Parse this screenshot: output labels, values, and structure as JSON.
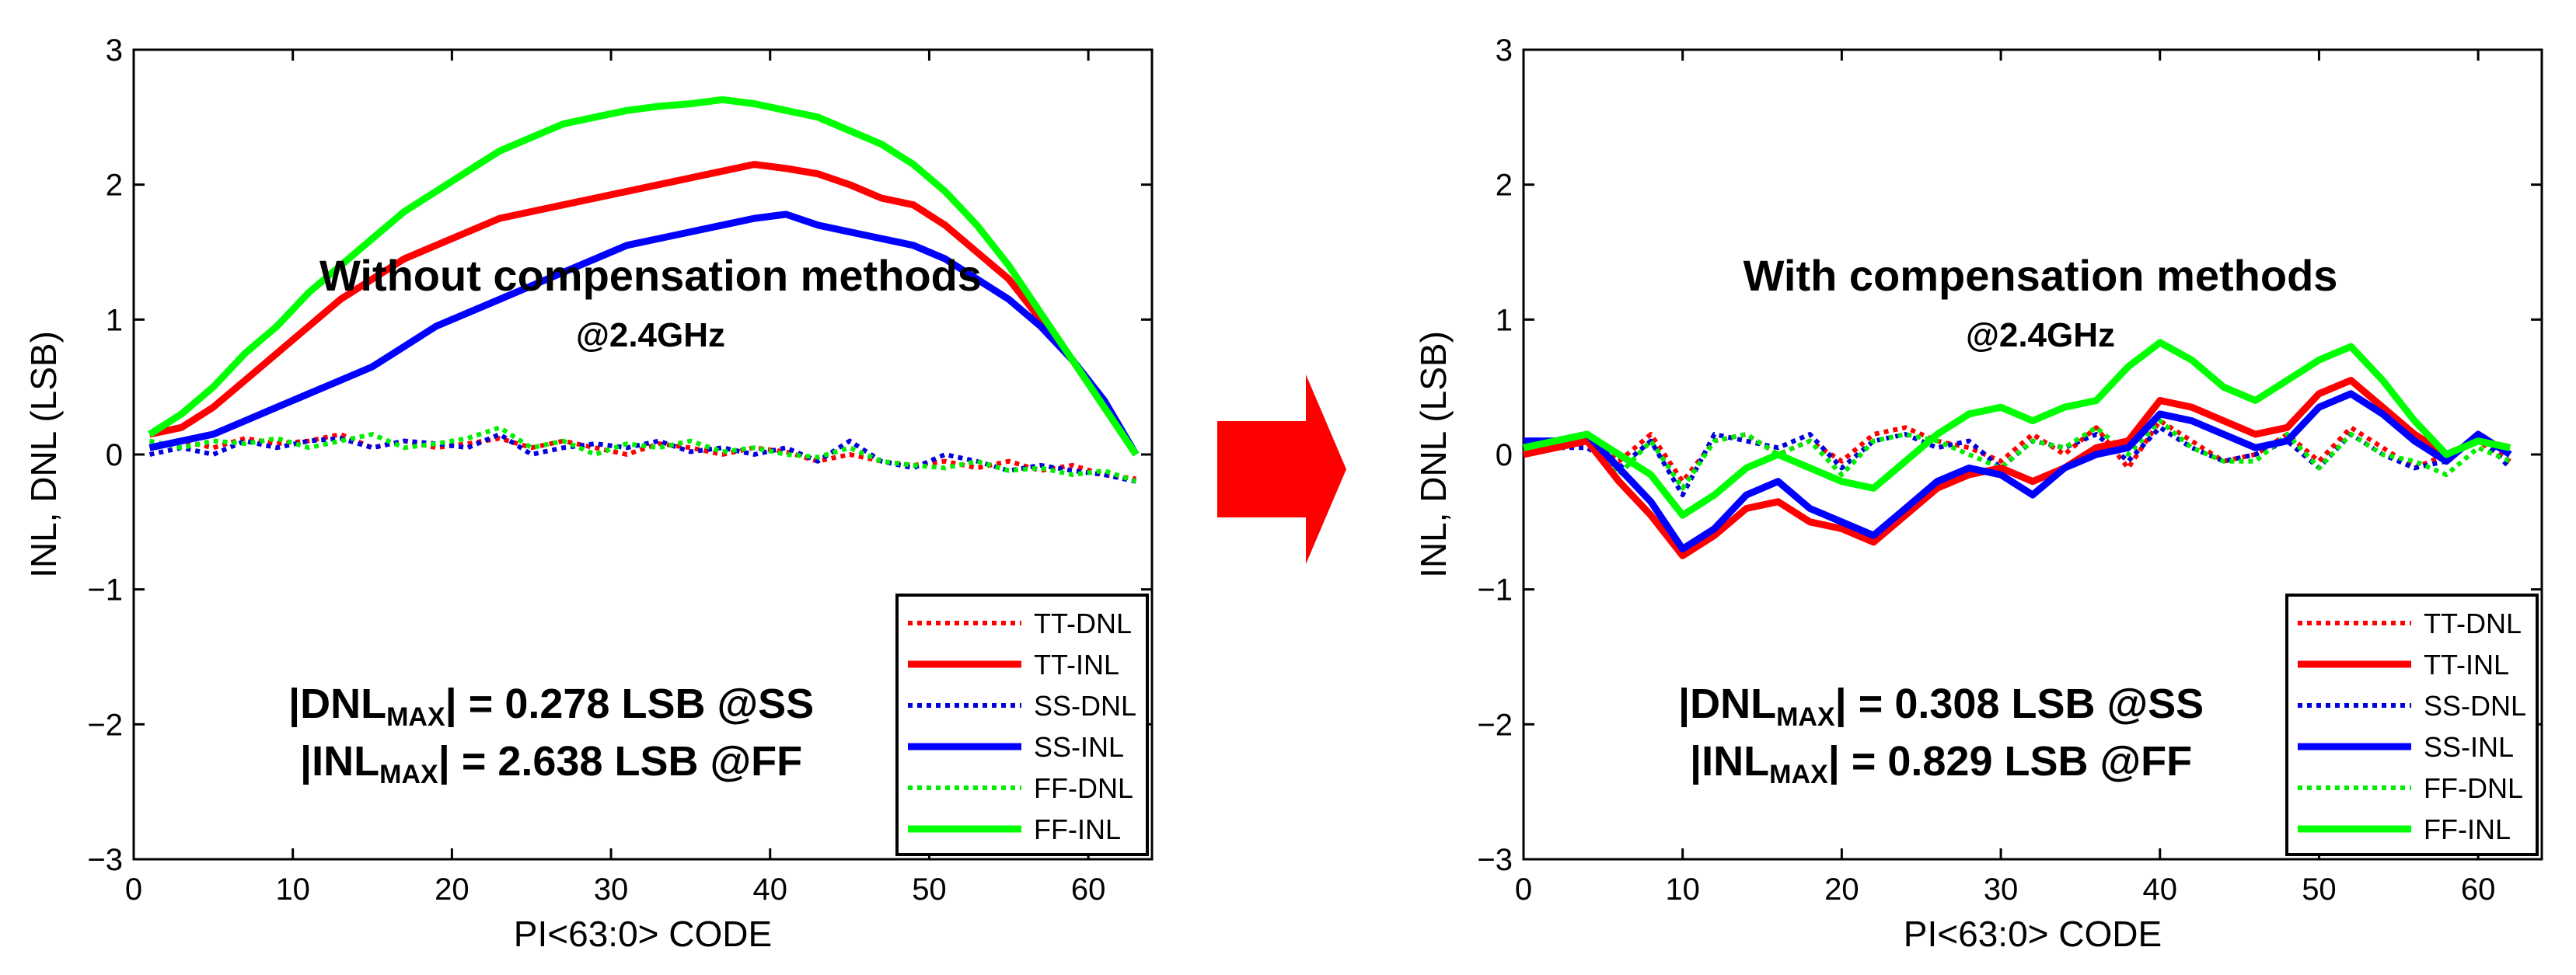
{
  "chart_data": [
    {
      "type": "line",
      "title": "Without compensation methods",
      "subtitle": "@2.4GHz",
      "xlabel": "PI<63:0> CODE",
      "ylabel": "INL, DNL (LSB)",
      "xlim": [
        0,
        64
      ],
      "ylim": [
        -3,
        3
      ],
      "xticks": [
        "0",
        "10",
        "20",
        "30",
        "40",
        "50",
        "60"
      ],
      "yticks": [
        "3",
        "2",
        "1",
        "0",
        "−1",
        "−2",
        "−3"
      ],
      "stats": [
        {
          "prefix": "|DNL",
          "sub": "MAX",
          "suffix": "| = 0.278 LSB @SS"
        },
        {
          "prefix": "|INL",
          "sub": "MAX",
          "suffix": "| = 2.638 LSB @FF"
        }
      ],
      "x": [
        1,
        3,
        5,
        7,
        9,
        11,
        13,
        15,
        17,
        19,
        21,
        23,
        25,
        27,
        29,
        31,
        33,
        35,
        37,
        39,
        41,
        43,
        45,
        47,
        49,
        51,
        53,
        55,
        57,
        59,
        61,
        63
      ],
      "series": [
        {
          "name": "TT-DNL",
          "color": "#ff0000",
          "style": "dotted",
          "values": [
            0.05,
            0.1,
            0.05,
            0.12,
            0.08,
            0.1,
            0.15,
            0.05,
            0.1,
            0.05,
            0.08,
            0.12,
            0.05,
            0.1,
            0.05,
            0.0,
            0.08,
            0.05,
            0.0,
            0.05,
            0.02,
            -0.05,
            0.0,
            -0.05,
            -0.08,
            -0.05,
            -0.1,
            -0.05,
            -0.12,
            -0.08,
            -0.15,
            -0.18
          ]
        },
        {
          "name": "TT-INL",
          "color": "#ff0000",
          "style": "solid",
          "values": [
            0.15,
            0.2,
            0.35,
            0.55,
            0.75,
            0.95,
            1.15,
            1.3,
            1.45,
            1.55,
            1.65,
            1.75,
            1.8,
            1.85,
            1.9,
            1.95,
            2.0,
            2.05,
            2.1,
            2.15,
            2.12,
            2.08,
            2.0,
            1.9,
            1.85,
            1.7,
            1.5,
            1.3,
            1.0,
            0.7,
            0.35,
            0.0
          ]
        },
        {
          "name": "SS-DNL",
          "color": "#0000dd",
          "style": "dotted",
          "values": [
            0.0,
            0.05,
            0.0,
            0.1,
            0.05,
            0.1,
            0.12,
            0.05,
            0.1,
            0.08,
            0.05,
            0.15,
            0.0,
            0.05,
            0.08,
            0.05,
            0.1,
            0.02,
            0.05,
            0.0,
            0.05,
            -0.05,
            0.1,
            -0.05,
            -0.1,
            0.0,
            -0.05,
            -0.12,
            -0.08,
            -0.12,
            -0.15,
            -0.2
          ]
        },
        {
          "name": "SS-INL",
          "color": "#0000ff",
          "style": "solid",
          "values": [
            0.05,
            0.1,
            0.15,
            0.25,
            0.35,
            0.45,
            0.55,
            0.65,
            0.8,
            0.95,
            1.05,
            1.15,
            1.25,
            1.35,
            1.45,
            1.55,
            1.6,
            1.65,
            1.7,
            1.75,
            1.78,
            1.7,
            1.65,
            1.6,
            1.55,
            1.45,
            1.3,
            1.15,
            0.95,
            0.7,
            0.4,
            0.0
          ]
        },
        {
          "name": "FF-DNL",
          "color": "#00ee00",
          "style": "dotted",
          "values": [
            0.1,
            0.05,
            0.1,
            0.08,
            0.12,
            0.05,
            0.1,
            0.15,
            0.05,
            0.08,
            0.12,
            0.2,
            0.05,
            0.1,
            0.0,
            0.08,
            0.05,
            0.1,
            0.02,
            0.05,
            0.0,
            -0.02,
            0.05,
            -0.05,
            -0.08,
            -0.1,
            -0.05,
            -0.12,
            -0.1,
            -0.15,
            -0.12,
            -0.2
          ]
        },
        {
          "name": "FF-INL",
          "color": "#00ff00",
          "style": "solid",
          "values": [
            0.15,
            0.3,
            0.5,
            0.75,
            0.95,
            1.2,
            1.4,
            1.6,
            1.8,
            1.95,
            2.1,
            2.25,
            2.35,
            2.45,
            2.5,
            2.55,
            2.58,
            2.6,
            2.63,
            2.6,
            2.55,
            2.5,
            2.4,
            2.3,
            2.15,
            1.95,
            1.7,
            1.4,
            1.05,
            0.7,
            0.35,
            0.0
          ]
        }
      ],
      "legend": "bottom-right"
    },
    {
      "type": "line",
      "title": "With compensation methods",
      "subtitle": "@2.4GHz",
      "xlabel": "PI<63:0> CODE",
      "ylabel": "INL, DNL (LSB)",
      "xlim": [
        0,
        64
      ],
      "ylim": [
        -3,
        3
      ],
      "xticks": [
        "0",
        "10",
        "20",
        "30",
        "40",
        "50",
        "60"
      ],
      "yticks": [
        "3",
        "2",
        "1",
        "0",
        "−1",
        "−2",
        "−3"
      ],
      "stats": [
        {
          "prefix": "|DNL",
          "sub": "MAX",
          "suffix": "| = 0.308 LSB @SS"
        },
        {
          "prefix": "|INL",
          "sub": "MAX",
          "suffix": "| = 0.829 LSB @FF"
        }
      ],
      "x": [
        0,
        2,
        4,
        6,
        8,
        10,
        12,
        14,
        16,
        18,
        20,
        22,
        24,
        26,
        28,
        30,
        32,
        34,
        36,
        38,
        40,
        42,
        44,
        46,
        48,
        50,
        52,
        54,
        56,
        58,
        60,
        62
      ],
      "series": [
        {
          "name": "TT-DNL",
          "color": "#ff0000",
          "style": "dotted",
          "values": [
            0.0,
            0.05,
            0.1,
            -0.05,
            0.15,
            -0.2,
            0.1,
            0.15,
            0.0,
            0.1,
            -0.05,
            0.15,
            0.2,
            0.1,
            0.05,
            -0.05,
            0.15,
            0.0,
            0.2,
            -0.1,
            0.25,
            0.1,
            -0.05,
            0.0,
            0.15,
            -0.05,
            0.2,
            0.05,
            -0.1,
            0.0,
            0.1,
            -0.05
          ]
        },
        {
          "name": "TT-INL",
          "color": "#ff0000",
          "style": "solid",
          "values": [
            0.0,
            0.05,
            0.1,
            -0.2,
            -0.45,
            -0.75,
            -0.6,
            -0.4,
            -0.35,
            -0.5,
            -0.55,
            -0.65,
            -0.45,
            -0.25,
            -0.15,
            -0.1,
            -0.2,
            -0.1,
            0.05,
            0.1,
            0.4,
            0.35,
            0.25,
            0.15,
            0.2,
            0.45,
            0.55,
            0.35,
            0.15,
            0.0,
            0.1,
            0.05
          ]
        },
        {
          "name": "SS-DNL",
          "color": "#0000dd",
          "style": "dotted",
          "values": [
            0.0,
            0.05,
            0.05,
            -0.1,
            0.1,
            -0.3,
            0.15,
            0.1,
            0.05,
            0.15,
            -0.1,
            0.1,
            0.15,
            0.05,
            0.1,
            -0.1,
            0.1,
            0.05,
            0.15,
            -0.05,
            0.2,
            0.05,
            -0.05,
            0.0,
            0.1,
            -0.1,
            0.15,
            0.0,
            -0.1,
            -0.05,
            0.15,
            -0.1
          ]
        },
        {
          "name": "SS-INL",
          "color": "#0000ff",
          "style": "solid",
          "values": [
            0.1,
            0.1,
            0.15,
            -0.1,
            -0.35,
            -0.7,
            -0.55,
            -0.3,
            -0.2,
            -0.4,
            -0.5,
            -0.6,
            -0.4,
            -0.2,
            -0.1,
            -0.15,
            -0.3,
            -0.1,
            0.0,
            0.05,
            0.3,
            0.25,
            0.15,
            0.05,
            0.1,
            0.35,
            0.45,
            0.3,
            0.1,
            -0.05,
            0.15,
            0.0
          ]
        },
        {
          "name": "FF-DNL",
          "color": "#00ee00",
          "style": "dotted",
          "values": [
            0.0,
            0.05,
            0.1,
            -0.15,
            0.1,
            -0.25,
            0.1,
            0.15,
            0.0,
            0.1,
            -0.15,
            0.1,
            0.15,
            0.1,
            0.0,
            -0.1,
            0.1,
            0.05,
            0.2,
            0.0,
            0.25,
            0.05,
            -0.05,
            -0.05,
            0.15,
            -0.1,
            0.15,
            0.0,
            -0.05,
            -0.15,
            0.05,
            -0.05
          ]
        },
        {
          "name": "FF-INL",
          "color": "#00ff00",
          "style": "solid",
          "values": [
            0.05,
            0.1,
            0.15,
            0.0,
            -0.15,
            -0.45,
            -0.3,
            -0.1,
            0.0,
            -0.1,
            -0.2,
            -0.25,
            -0.05,
            0.15,
            0.3,
            0.35,
            0.25,
            0.35,
            0.4,
            0.65,
            0.83,
            0.7,
            0.5,
            0.4,
            0.55,
            0.7,
            0.8,
            0.55,
            0.25,
            0.0,
            0.1,
            0.05
          ]
        }
      ],
      "legend": "bottom-right"
    }
  ],
  "arrow": {
    "color": "#ff0000"
  }
}
